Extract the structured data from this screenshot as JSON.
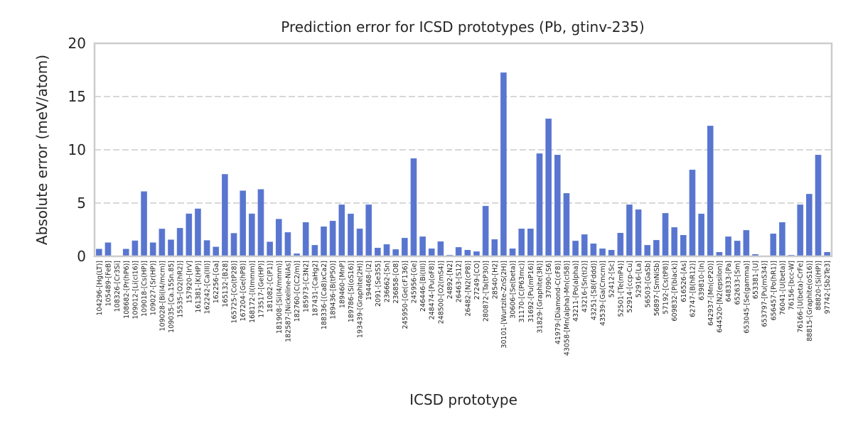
{
  "chart_data": {
    "type": "bar",
    "title": "Prediction error for ICSD prototypes (Pb, gtinv-235)",
    "xlabel": "ICSD prototype",
    "ylabel": "Absolute error (meV/atom)",
    "ylim": [
      0,
      20
    ],
    "yticks": [
      "0",
      "5",
      "10",
      "15",
      "20"
    ],
    "ytick_values": [
      0,
      5,
      10,
      15,
      20
    ],
    "grid": "horizontal-dashed",
    "bar_color": "#5875cf",
    "categories": [
      "104296-[Hg(LT)]",
      "105489-[FeB]",
      "108326-[Cr3Si]",
      "108682-[Pr(hP6)]",
      "109012-[Li(cI16)]",
      "109018-[Cs(HP)]",
      "109027-[Sr(HP)]",
      "109028-[Bi(I4/mcm)]",
      "109035-[Ca.15Sn.85]",
      "15535-[O2(hR2)]",
      "157920-[IrV]",
      "161381-[K(HP)]",
      "162242-[Ca(III)]",
      "162256-[Ga]",
      "165132-[B28]",
      "165725-[Co(tP28)]",
      "167204-[Ge(hP8)]",
      "168172-[I(Immm)]",
      "173517-[Ge(HP)]",
      "181082-[C(P1)]",
      "181908-[Si(I4/mmm)]",
      "182587-[Nickeline-NiAs]",
      "182760-[C(C2/m)]",
      "185973-[C3N2]",
      "187431-[CaHg2]",
      "188336-[(Ca8)xCa2]",
      "189436-[B(tP50)]",
      "189460-[MnP]",
      "189786-[Si(oS16)]",
      "193439-[Graphite(2H)]",
      "194468-[I2]",
      "2091-[Se3S5]",
      "236662-[Sn]",
      "236858-[O8]",
      "245950-[Ge(cF136)]",
      "245956-[Ge]",
      "246446-[Bi(III)]",
      "248474-[Pu(oF8)]",
      "248500-[O2(mS4)]",
      "24892-[N2]",
      "26463-[S12]",
      "26482-[N2(cP8)]",
      "27249-[CO]",
      "280872-[Ta(tP30)]",
      "28540-[H2]",
      "30101-[Wurtzite-ZnS(2H)]",
      "30606-[Se(beta)]",
      "31170-[C(P63mc)]",
      "31692-[Pu(mP16)]",
      "31829-[Graphite(3R)]",
      "37090-[S6]",
      "41979-[Diamond-C(cF8)]",
      "43058-[Mn(alpha)-Mn(cI58)]",
      "43211-[Po(alpha)]",
      "43216-[Sn(tI2)]",
      "43251-[S8(Fddd)]",
      "43539-[Ga(Cmcm)]",
      "52412-[Sc]",
      "52501-[Te(mP4)]",
      "52914-[ccp-Cu]",
      "52916-[La]",
      "56503-[GaSb]",
      "56897-[SmNiSb]",
      "57192-[Cs(tP8)]",
      "609832-[P(black)]",
      "616526-[As]",
      "62747-[B(hR12)]",
      "639810-[In]",
      "642937-[Mn(cP20)]",
      "644520-[N2(epsilon)]",
      "648333-[Pa]",
      "652633-[Sm]",
      "653045-[Se(gamma)]",
      "653381-[U]",
      "653797-[Pu(mS34)]",
      "656457-[Po(hR1)]",
      "76041-[U(beta)]",
      "76156-[bcc-W]",
      "76166-[U(beta)-CrFe]",
      "88815-[Graphite(oS16)]",
      "88820-[Si(HP)]",
      "97742-[Sb2Te3]"
    ],
    "values": [
      0.68,
      1.28,
      0.0,
      0.68,
      1.46,
      6.08,
      1.28,
      2.57,
      1.55,
      2.64,
      3.99,
      4.46,
      1.49,
      0.88,
      7.7,
      2.16,
      6.15,
      3.99,
      6.28,
      1.35,
      3.49,
      2.24,
      0.24,
      3.18,
      1.04,
      2.78,
      3.31,
      4.84,
      3.98,
      2.58,
      4.84,
      0.78,
      1.11,
      0.64,
      1.71,
      9.18,
      1.84,
      0.71,
      1.38,
      0.11,
      0.84,
      0.58,
      0.44,
      4.71,
      1.58,
      17.24,
      0.71,
      2.58,
      2.58,
      9.64,
      12.91,
      9.51,
      5.91,
      1.44,
      2.04,
      1.18,
      0.71,
      0.58,
      2.18,
      4.84,
      4.38,
      1.04,
      1.51,
      4.04,
      2.71,
      1.98,
      8.11,
      3.98,
      12.24,
      0.38,
      1.84,
      1.44,
      2.44,
      0.18,
      0.0,
      2.11,
      3.18,
      0.11,
      4.84,
      5.84,
      9.51,
      0.38
    ]
  }
}
